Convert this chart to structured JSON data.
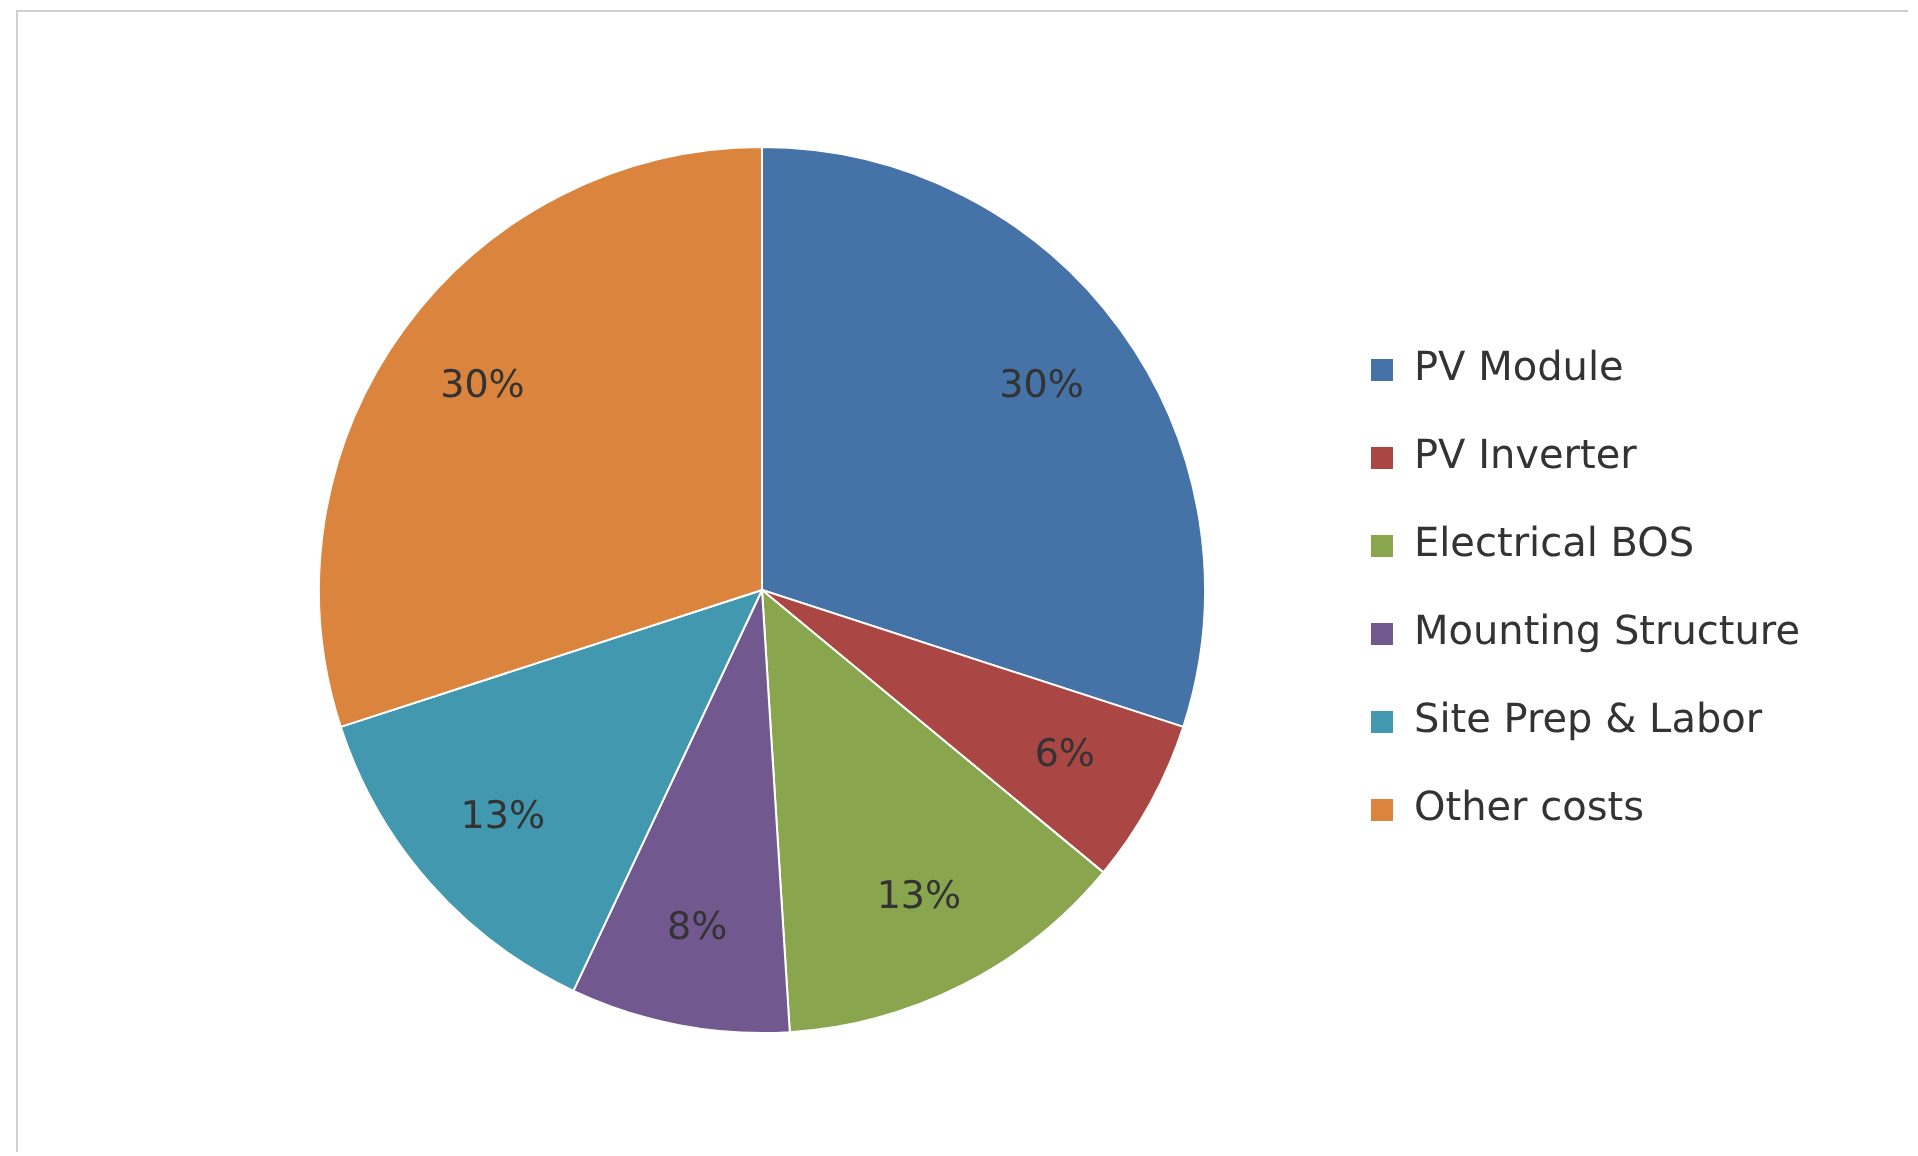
{
  "chart_data": {
    "type": "pie",
    "categories": [
      "PV Module",
      "PV Inverter",
      "Electrical BOS",
      "Mounting Structure",
      "Site Prep & Labor",
      "Other costs"
    ],
    "values": [
      30,
      6,
      13,
      8,
      13,
      30
    ],
    "value_labels": [
      "30%",
      "6%",
      "13%",
      "8%",
      "13%",
      "30%"
    ],
    "colors": [
      "#4572a7",
      "#aa4643",
      "#89a54e",
      "#71588f",
      "#4198af",
      "#db843d"
    ],
    "legend": "right"
  }
}
